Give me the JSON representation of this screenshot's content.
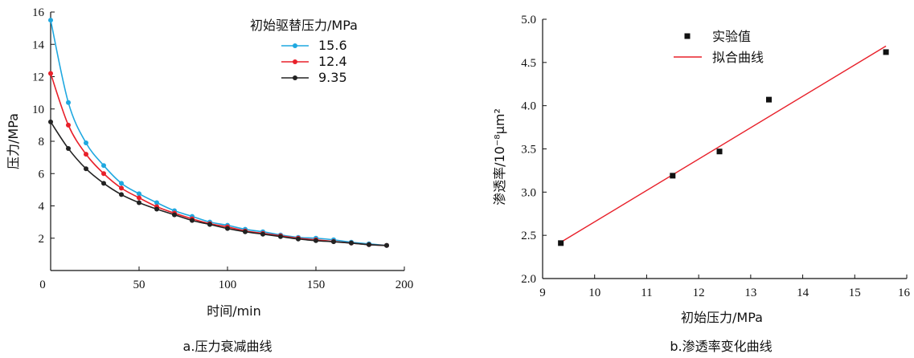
{
  "chart_data": [
    {
      "type": "line",
      "caption": "a.压力衰减曲线",
      "xlabel": "时间/min",
      "ylabel": "压力/MPa",
      "xlim": [
        0,
        200
      ],
      "ylim": [
        0,
        16
      ],
      "xticks": [
        0,
        50,
        100,
        150,
        200
      ],
      "yticks": [
        2,
        4,
        6,
        8,
        10,
        12,
        14,
        16
      ],
      "grid": false,
      "legend": {
        "title": "初始驱替压力/MPa",
        "placement": "top-right"
      },
      "x": [
        0,
        10,
        20,
        30,
        40,
        50,
        60,
        70,
        80,
        90,
        100,
        110,
        120,
        130,
        140,
        150,
        160,
        170,
        180,
        190
      ],
      "series": [
        {
          "name": "15.6",
          "color": "#1fa8e0",
          "values": [
            15.5,
            10.4,
            7.9,
            6.5,
            5.4,
            4.75,
            4.2,
            3.7,
            3.35,
            3.0,
            2.8,
            2.55,
            2.4,
            2.2,
            2.05,
            2.0,
            1.9,
            1.75,
            1.65,
            1.55
          ]
        },
        {
          "name": "12.4",
          "color": "#e8202a",
          "values": [
            12.2,
            9.0,
            7.2,
            6.0,
            5.1,
            4.5,
            3.95,
            3.55,
            3.2,
            2.9,
            2.7,
            2.45,
            2.3,
            2.15,
            2.0,
            1.9,
            1.8,
            1.7,
            1.6,
            1.55
          ]
        },
        {
          "name": "9.35",
          "color": "#222222",
          "values": [
            9.2,
            7.55,
            6.3,
            5.4,
            4.7,
            4.2,
            3.8,
            3.45,
            3.1,
            2.85,
            2.6,
            2.4,
            2.25,
            2.1,
            1.95,
            1.85,
            1.78,
            1.7,
            1.6,
            1.55
          ]
        }
      ]
    },
    {
      "type": "scatter",
      "caption": "b.渗透率变化曲线",
      "xlabel": "初始压力/MPa",
      "ylabel": "渗透率/10⁻⁸μm²",
      "xlim": [
        9,
        16
      ],
      "ylim": [
        2.0,
        5.0
      ],
      "xticks": [
        9,
        10,
        11,
        12,
        13,
        14,
        15,
        16
      ],
      "yticks": [
        2.0,
        2.5,
        3.0,
        3.5,
        4.0,
        4.5,
        5.0
      ],
      "grid": false,
      "legend": {
        "placement": "top-left"
      },
      "series": [
        {
          "name": "实验值",
          "kind": "points",
          "color": "#111111",
          "points": [
            [
              9.35,
              2.41
            ],
            [
              11.5,
              3.19
            ],
            [
              12.4,
              3.47
            ],
            [
              13.35,
              4.07
            ],
            [
              15.6,
              4.62
            ]
          ]
        },
        {
          "name": "拟合曲线",
          "kind": "line",
          "color": "#e8202a",
          "points": [
            [
              9.35,
              2.42
            ],
            [
              15.6,
              4.69
            ]
          ]
        }
      ]
    }
  ]
}
